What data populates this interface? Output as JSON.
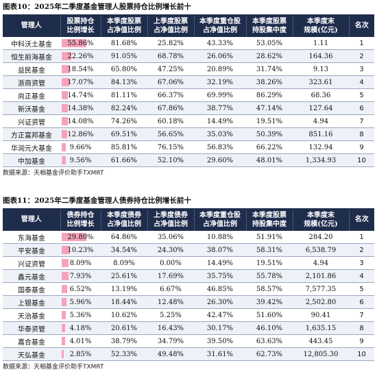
{
  "stock_section": {
    "title": "图表10：2025年二季度基金管理人股票持仓比例增长前十",
    "headers": [
      "管理人",
      "股票持仓\n比例增长",
      "本季度股票\n占净值比例",
      "上季度股票\n占净值比例",
      "本季度重仓股\n占净值比例",
      "本季度股票\n持股集中度",
      "本季度末\n规模(亿元)",
      "名次"
    ],
    "rows": [
      {
        "name": "中科沃土基金",
        "growth": "55.86%",
        "growth_value": 55.86,
        "cur": "81.68%",
        "prev": "25.82%",
        "heavy": "43.33%",
        "conc": "53.05%",
        "scale": "1.11",
        "rank": "1"
      },
      {
        "name": "恒生前海基金",
        "growth": "22.26%",
        "growth_value": 22.26,
        "cur": "91.05%",
        "prev": "68.78%",
        "heavy": "26.06%",
        "conc": "28.62%",
        "scale": "164.36",
        "rank": "2"
      },
      {
        "name": "益民基金",
        "growth": "18.54%",
        "growth_value": 18.54,
        "cur": "65.80%",
        "prev": "47.25%",
        "heavy": "20.89%",
        "conc": "31.74%",
        "scale": "9.13",
        "rank": "3"
      },
      {
        "name": "浙商资管",
        "growth": "17.07%",
        "growth_value": 17.07,
        "cur": "84.13%",
        "prev": "67.06%",
        "heavy": "32.19%",
        "conc": "38.26%",
        "scale": "323.61",
        "rank": "4"
      },
      {
        "name": "尚正基金",
        "growth": "14.74%",
        "growth_value": 14.74,
        "cur": "81.11%",
        "prev": "66.37%",
        "heavy": "69.99%",
        "conc": "86.29%",
        "scale": "68.36",
        "rank": "5"
      },
      {
        "name": "新沃基金",
        "growth": "14.38%",
        "growth_value": 14.38,
        "cur": "82.24%",
        "prev": "67.86%",
        "heavy": "38.77%",
        "conc": "47.14%",
        "scale": "127.64",
        "rank": "6"
      },
      {
        "name": "兴证资管",
        "growth": "14.08%",
        "growth_value": 14.08,
        "cur": "74.26%",
        "prev": "60.18%",
        "heavy": "14.49%",
        "conc": "19.51%",
        "scale": "4.94",
        "rank": "7"
      },
      {
        "name": "方正富邦基金",
        "growth": "12.86%",
        "growth_value": 12.86,
        "cur": "69.51%",
        "prev": "56.65%",
        "heavy": "35.03%",
        "conc": "50.39%",
        "scale": "851.16",
        "rank": "8"
      },
      {
        "name": "华润元大基金",
        "growth": "9.66%",
        "growth_value": 9.66,
        "cur": "85.81%",
        "prev": "76.15%",
        "heavy": "56.83%",
        "conc": "66.22%",
        "scale": "132.94",
        "rank": "9"
      },
      {
        "name": "中加基金",
        "growth": "9.56%",
        "growth_value": 9.56,
        "cur": "61.66%",
        "prev": "52.10%",
        "heavy": "29.60%",
        "conc": "48.01%",
        "scale": "1,334.93",
        "rank": "10"
      }
    ],
    "source": "数据来源：天相基金评价助手TXMRT"
  },
  "bond_section": {
    "title": "图表11：2025年二季度基金管理人债券持仓比例增长前十",
    "headers": [
      "管理人",
      "债券持仓\n比例增长",
      "本季度债券\n占净值比例",
      "上季度债券\n占净值比例",
      "本季度重仓股\n占净值比例",
      "本季度股票\n持股集中度",
      "本季度末\n规模(亿元)",
      "名次"
    ],
    "rows": [
      {
        "name": "东海基金",
        "growth": "29.80%",
        "growth_value": 29.8,
        "cur": "64.86%",
        "prev": "35.06%",
        "heavy": "10.88%",
        "conc": "51.91%",
        "scale": "284.20",
        "rank": "1"
      },
      {
        "name": "平安基金",
        "growth": "10.23%",
        "growth_value": 10.23,
        "cur": "34.54%",
        "prev": "24.30%",
        "heavy": "38.07%",
        "conc": "58.31%",
        "scale": "6,538.79",
        "rank": "2"
      },
      {
        "name": "兴证资管",
        "growth": "8.09%",
        "growth_value": 8.09,
        "cur": "8.09%",
        "prev": "0.00%",
        "heavy": "14.49%",
        "conc": "19.51%",
        "scale": "4.94",
        "rank": "3"
      },
      {
        "name": "鑫元基金",
        "growth": "7.93%",
        "growth_value": 7.93,
        "cur": "25.61%",
        "prev": "17.69%",
        "heavy": "35.75%",
        "conc": "55.78%",
        "scale": "2,101.86",
        "rank": "4"
      },
      {
        "name": "国泰基金",
        "growth": "6.52%",
        "growth_value": 6.52,
        "cur": "13.19%",
        "prev": "6.67%",
        "heavy": "46.85%",
        "conc": "58.57%",
        "scale": "7,577.35",
        "rank": "5"
      },
      {
        "name": "上银基金",
        "growth": "5.96%",
        "growth_value": 5.96,
        "cur": "18.44%",
        "prev": "12.48%",
        "heavy": "26.30%",
        "conc": "39.42%",
        "scale": "2,502.80",
        "rank": "6"
      },
      {
        "name": "天治基金",
        "growth": "5.36%",
        "growth_value": 5.36,
        "cur": "10.62%",
        "prev": "5.25%",
        "heavy": "42.47%",
        "conc": "51.60%",
        "scale": "90.41",
        "rank": "7"
      },
      {
        "name": "华泰资管",
        "growth": "4.18%",
        "growth_value": 4.18,
        "cur": "20.61%",
        "prev": "16.43%",
        "heavy": "30.17%",
        "conc": "46.10%",
        "scale": "1,635.15",
        "rank": "8"
      },
      {
        "name": "嘉合基金",
        "growth": "4.01%",
        "growth_value": 4.01,
        "cur": "38.79%",
        "prev": "34.79%",
        "heavy": "39.50%",
        "conc": "63.63%",
        "scale": "443.45",
        "rank": "9"
      },
      {
        "name": "天弘基金",
        "growth": "2.85%",
        "growth_value": 2.85,
        "cur": "52.33%",
        "prev": "49.48%",
        "heavy": "31.61%",
        "conc": "62.73%",
        "scale": "12,805.30",
        "rank": "10"
      }
    ],
    "source": "数据来源：天相基金评价助手TXMRT"
  },
  "colors": {
    "header_bg": "#1f2d4d",
    "bar_fill": "#f5a3bb",
    "alt_row": "#eef1f7"
  }
}
